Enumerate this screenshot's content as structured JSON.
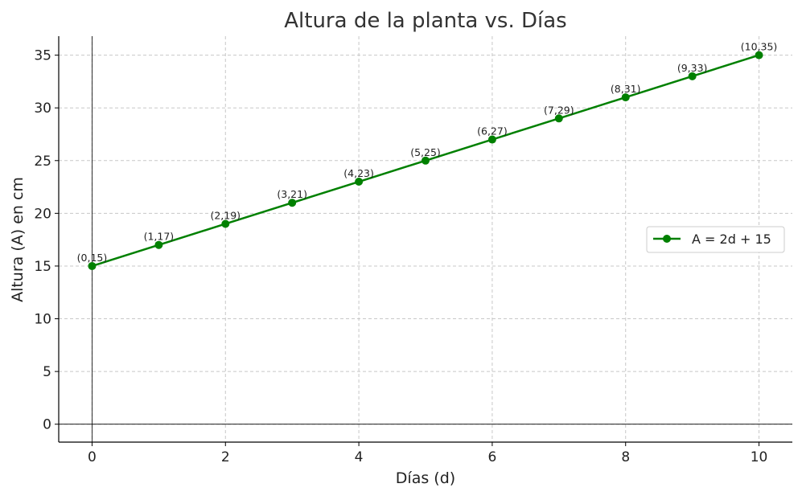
{
  "chart_data": {
    "type": "line",
    "title": "Altura de la planta vs. Días",
    "xlabel": "Días (d)",
    "ylabel": "Altura (A) en cm",
    "xlim": [
      -0.5,
      10.5
    ],
    "ylim": [
      -1.7,
      36.8
    ],
    "xticks": [
      0,
      2,
      4,
      6,
      8,
      10
    ],
    "xtick_labels": [
      "0",
      "2",
      "4",
      "6",
      "8",
      "10"
    ],
    "yticks": [
      0,
      5,
      10,
      15,
      20,
      25,
      30,
      35
    ],
    "ytick_labels": [
      "0",
      "5",
      "10",
      "15",
      "20",
      "25",
      "30",
      "35"
    ],
    "grid": true,
    "legend_position": "center-right",
    "series": [
      {
        "name": "A = 2d + 15",
        "color": "#008000",
        "marker": "circle",
        "x": [
          0,
          1,
          2,
          3,
          4,
          5,
          6,
          7,
          8,
          9,
          10
        ],
        "y": [
          15,
          17,
          19,
          21,
          23,
          25,
          27,
          29,
          31,
          33,
          35
        ],
        "point_labels": [
          "(0,15)",
          "(1,17)",
          "(2,19)",
          "(3,21)",
          "(4,23)",
          "(5,25)",
          "(6,27)",
          "(7,29)",
          "(8,31)",
          "(9,33)",
          "(10,35)"
        ]
      }
    ]
  }
}
